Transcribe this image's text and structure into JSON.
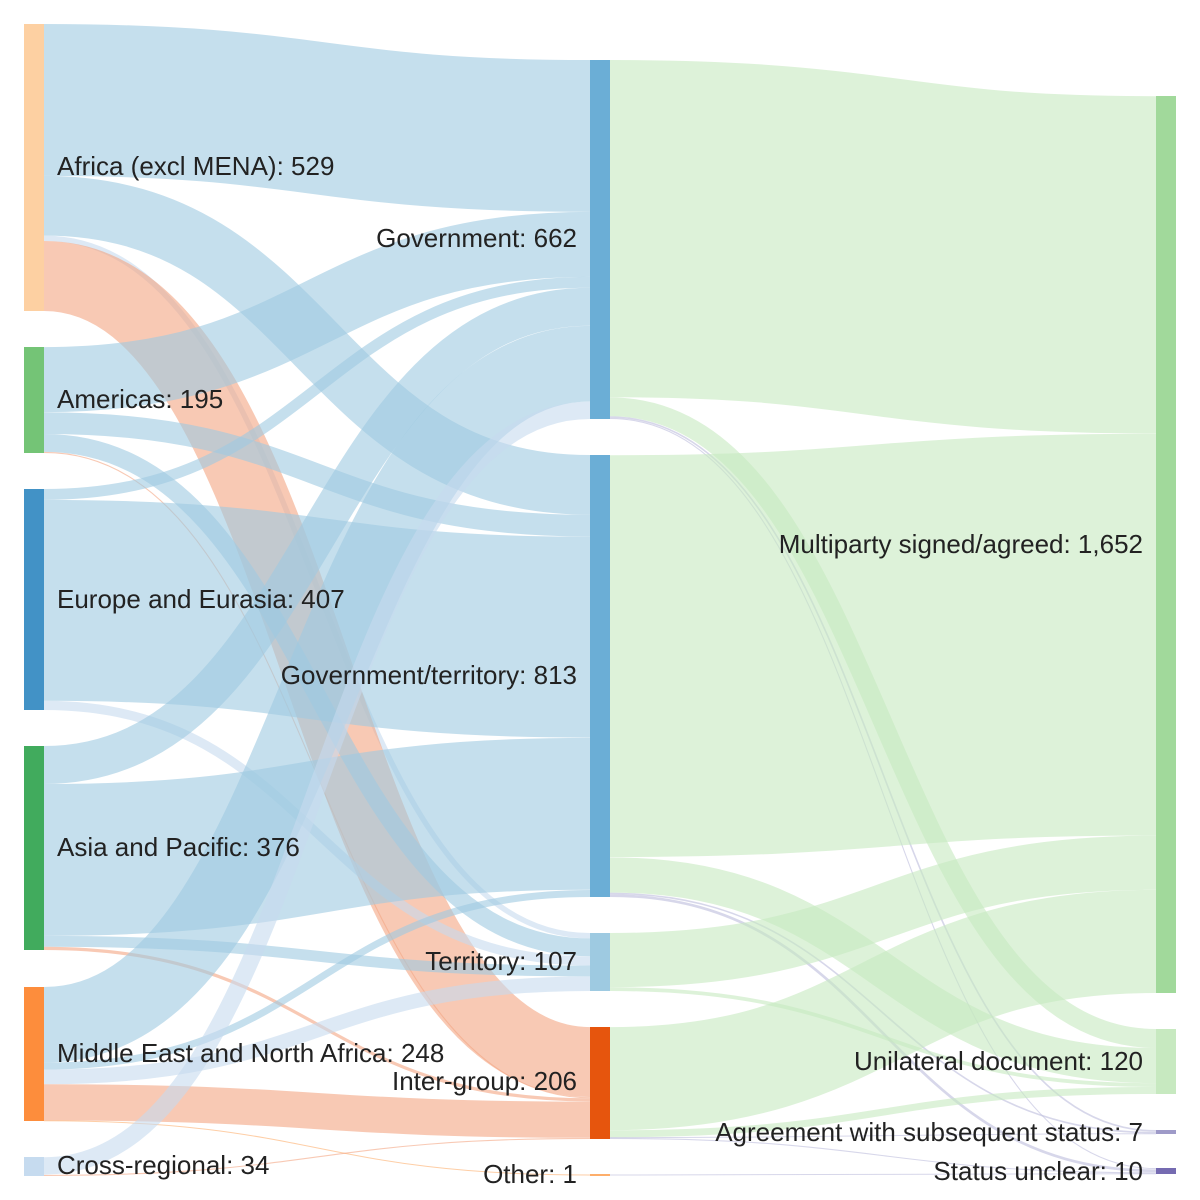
{
  "chart_data": {
    "type": "sankey",
    "title": "",
    "columns": [
      {
        "nodes": [
          {
            "id": "africa",
            "label": "Africa (excl MENA): 529",
            "value": 529,
            "color": "#fdd0a2"
          },
          {
            "id": "americas",
            "label": "Americas: 195",
            "value": 195,
            "color": "#74c476"
          },
          {
            "id": "europe",
            "label": "Europe and Eurasia: 407",
            "value": 407,
            "color": "#4292c6"
          },
          {
            "id": "asia",
            "label": "Asia and Pacific: 376",
            "value": 376,
            "color": "#41ab5d"
          },
          {
            "id": "mena",
            "label": "Middle East and North Africa: 248",
            "value": 248,
            "color": "#fd8d3c"
          },
          {
            "id": "cross",
            "label": "Cross-regional: 34",
            "value": 34,
            "color": "#c6dbef"
          }
        ]
      },
      {
        "nodes": [
          {
            "id": "gov",
            "label": "Government: 662",
            "value": 662,
            "color": "#6baed6"
          },
          {
            "id": "govterr",
            "label": "Government/territory: 813",
            "value": 813,
            "color": "#6baed6"
          },
          {
            "id": "terr",
            "label": "Territory: 107",
            "value": 107,
            "color": "#9ecae1"
          },
          {
            "id": "inter",
            "label": "Inter-group: 206",
            "value": 206,
            "color": "#e6550d"
          },
          {
            "id": "other",
            "label": "Other: 1",
            "value": 1,
            "color": "#fdae6b"
          }
        ]
      },
      {
        "nodes": [
          {
            "id": "multi",
            "label": "Multiparty signed/agreed: 1,652",
            "value": 1652,
            "color": "#a1d99b"
          },
          {
            "id": "unilateral",
            "label": "Unilateral document: 120",
            "value": 120,
            "color": "#c7e9c0"
          },
          {
            "id": "subseq",
            "label": "Agreement with subsequent status: 7",
            "value": 7,
            "color": "#9e9ac8"
          },
          {
            "id": "unclear",
            "label": "Status unclear: 10",
            "value": 10,
            "color": "#756bb1"
          }
        ]
      }
    ],
    "links": [
      {
        "source": "africa",
        "target": "gov",
        "value": 280,
        "color": "#9ecae1"
      },
      {
        "source": "africa",
        "target": "govterr",
        "value": 110,
        "color": "#9ecae1"
      },
      {
        "source": "africa",
        "target": "terr",
        "value": 10,
        "color": "#c6dbef"
      },
      {
        "source": "africa",
        "target": "inter",
        "value": 129,
        "color": "#f4a582"
      },
      {
        "source": "americas",
        "target": "gov",
        "value": 120,
        "color": "#9ecae1"
      },
      {
        "source": "americas",
        "target": "govterr",
        "value": 40,
        "color": "#9ecae1"
      },
      {
        "source": "americas",
        "target": "terr",
        "value": 33,
        "color": "#9ecae1"
      },
      {
        "source": "americas",
        "target": "inter",
        "value": 2,
        "color": "#f4a582"
      },
      {
        "source": "europe",
        "target": "gov",
        "value": 20,
        "color": "#9ecae1"
      },
      {
        "source": "europe",
        "target": "govterr",
        "value": 370,
        "color": "#9ecae1"
      },
      {
        "source": "europe",
        "target": "terr",
        "value": 17,
        "color": "#c6dbef"
      },
      {
        "source": "asia",
        "target": "gov",
        "value": 70,
        "color": "#9ecae1"
      },
      {
        "source": "asia",
        "target": "govterr",
        "value": 280,
        "color": "#9ecae1"
      },
      {
        "source": "asia",
        "target": "terr",
        "value": 20,
        "color": "#9ecae1"
      },
      {
        "source": "asia",
        "target": "inter",
        "value": 6,
        "color": "#f4a582"
      },
      {
        "source": "mena",
        "target": "gov",
        "value": 140,
        "color": "#9ecae1"
      },
      {
        "source": "mena",
        "target": "govterr",
        "value": 13,
        "color": "#9ecae1"
      },
      {
        "source": "mena",
        "target": "terr",
        "value": 27,
        "color": "#c6dbef"
      },
      {
        "source": "mena",
        "target": "inter",
        "value": 67,
        "color": "#f4a582"
      },
      {
        "source": "mena",
        "target": "other",
        "value": 1,
        "color": "#fdae6b"
      },
      {
        "source": "cross",
        "target": "gov",
        "value": 32,
        "color": "#c6dbef"
      },
      {
        "source": "cross",
        "target": "inter",
        "value": 2,
        "color": "#f4a582"
      },
      {
        "source": "gov",
        "target": "multi",
        "value": 622,
        "color": "#c7e9c0"
      },
      {
        "source": "gov",
        "target": "unilateral",
        "value": 35,
        "color": "#c7e9c0"
      },
      {
        "source": "gov",
        "target": "subseq",
        "value": 3,
        "color": "#bcbddc"
      },
      {
        "source": "gov",
        "target": "unclear",
        "value": 2,
        "color": "#bcbddc"
      },
      {
        "source": "govterr",
        "target": "multi",
        "value": 740,
        "color": "#c7e9c0"
      },
      {
        "source": "govterr",
        "target": "unilateral",
        "value": 65,
        "color": "#c7e9c0"
      },
      {
        "source": "govterr",
        "target": "subseq",
        "value": 3,
        "color": "#bcbddc"
      },
      {
        "source": "govterr",
        "target": "unclear",
        "value": 5,
        "color": "#bcbddc"
      },
      {
        "source": "terr",
        "target": "multi",
        "value": 100,
        "color": "#c7e9c0"
      },
      {
        "source": "terr",
        "target": "unilateral",
        "value": 7,
        "color": "#c7e9c0"
      },
      {
        "source": "inter",
        "target": "multi",
        "value": 190,
        "color": "#c7e9c0"
      },
      {
        "source": "inter",
        "target": "unilateral",
        "value": 13,
        "color": "#c7e9c0"
      },
      {
        "source": "inter",
        "target": "subseq",
        "value": 1,
        "color": "#bcbddc"
      },
      {
        "source": "inter",
        "target": "unclear",
        "value": 2,
        "color": "#bcbddc"
      },
      {
        "source": "other",
        "target": "unclear",
        "value": 1,
        "color": "#bcbddc"
      }
    ]
  }
}
